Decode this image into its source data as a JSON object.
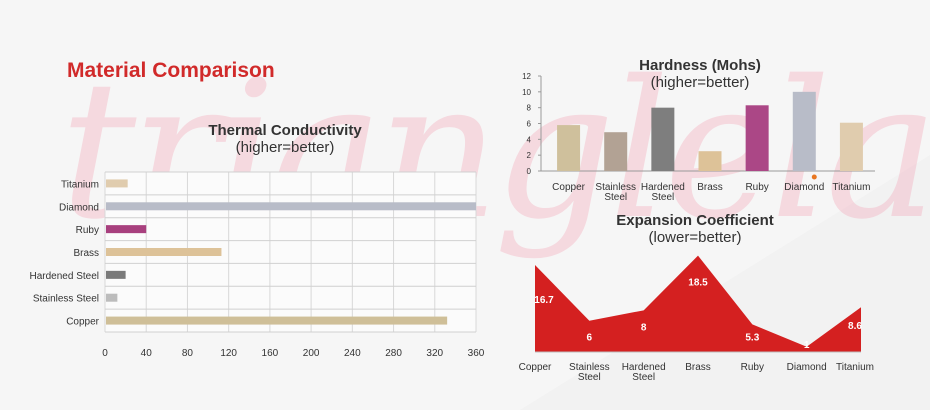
{
  "page_title": "Material Comparison",
  "watermark": "trianglelab",
  "colors": {
    "heading": "#d12a2a",
    "watermark": "#f4b6c4",
    "expansion_fill": "#d42020"
  },
  "chart_data": [
    {
      "type": "bar",
      "orientation": "horizontal",
      "title": "Thermal Conductivity",
      "subtitle": "(higher=better)",
      "categories": [
        "Titanium",
        "Diamond",
        "Ruby",
        "Brass",
        "Hardened Steel",
        "Stainless Steel",
        "Copper"
      ],
      "values": [
        22,
        360,
        40,
        113,
        20,
        12,
        332
      ],
      "colors": [
        "#e0ccae",
        "#b8bcc8",
        "#a8407e",
        "#ddc298",
        "#7a7a7a",
        "#bcbcbc",
        "#cfbf98"
      ],
      "xlim": [
        0,
        360
      ],
      "xticks": [
        0,
        40,
        80,
        120,
        160,
        200,
        240,
        280,
        320,
        360
      ],
      "grid": true
    },
    {
      "type": "bar",
      "title": "Hardness (Mohs)",
      "subtitle": "(higher=better)",
      "categories": [
        "Copper",
        "Stainless Steel",
        "Hardened Steel",
        "Brass",
        "Ruby",
        "Diamond",
        "Titanium"
      ],
      "values": [
        5.8,
        4.9,
        8,
        2.5,
        8.3,
        10,
        6.1
      ],
      "colors": [
        "#cfc09c",
        "#b2a294",
        "#7e7e7e",
        "#ddc298",
        "#ab4786",
        "#b8bcc8",
        "#e0ccae"
      ],
      "ylim": [
        0,
        12
      ],
      "yticks": [
        0,
        2,
        4,
        6,
        8,
        10,
        12
      ],
      "grid": false
    },
    {
      "type": "area",
      "title": "Expansion Coefficient",
      "subtitle": "(lower=better)",
      "categories": [
        "Copper",
        "Stainless Steel",
        "Hardened Steel",
        "Brass",
        "Ruby",
        "Diamond",
        "Titanium"
      ],
      "values": [
        16.7,
        6,
        8,
        18.5,
        5.3,
        1,
        8.6
      ],
      "data_labels": [
        "16.7",
        "6",
        "8",
        "18.5",
        "5.3",
        "1",
        "8.6"
      ],
      "ylim": [
        0,
        19
      ]
    }
  ]
}
